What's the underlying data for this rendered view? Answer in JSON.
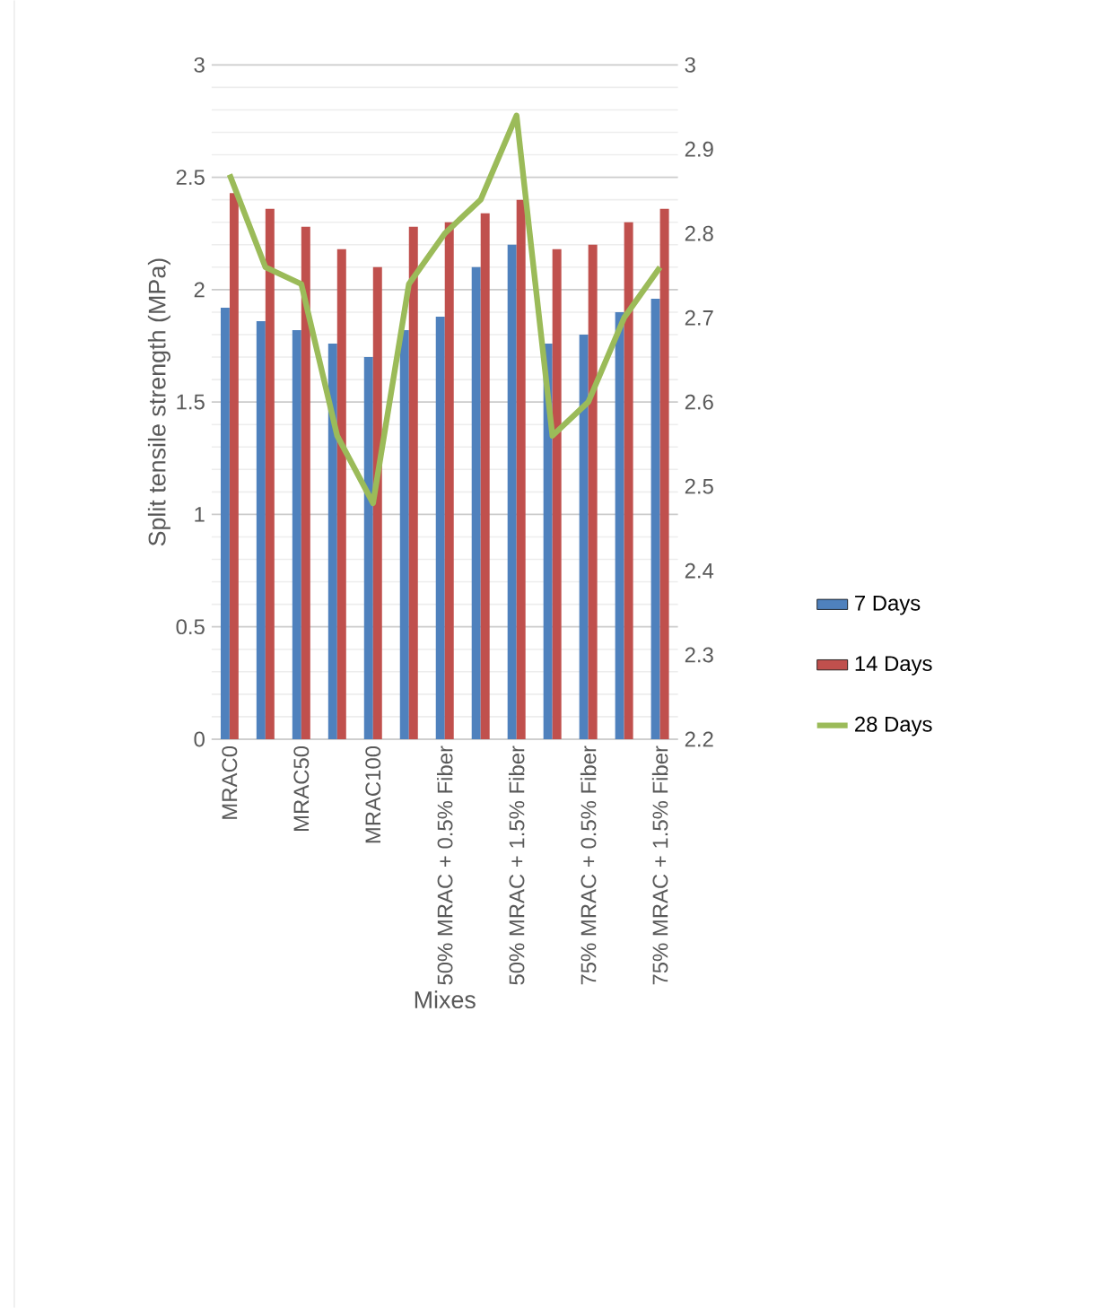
{
  "chart_data": {
    "type": "bar",
    "xlabel": "Mixes",
    "ylabel": "Split tensile strength (MPa)",
    "categories": [
      "MRAC0",
      null,
      "MRAC50",
      null,
      "MRAC100",
      null,
      "50% MRAC + 0.5% Fiber",
      null,
      "50% MRAC + 1.5% Fiber",
      null,
      "75% MRAC + 0.5% Fiber",
      null,
      "75% MRAC + 1.5% Fiber"
    ],
    "series": [
      {
        "name": "7 Days",
        "color": "#4f81bd",
        "values": [
          1.92,
          1.86,
          1.82,
          1.76,
          1.7,
          1.82,
          1.88,
          2.1,
          2.2,
          1.76,
          1.8,
          1.9,
          1.96
        ]
      },
      {
        "name": "14 Days",
        "color": "#c0504d",
        "values": [
          2.43,
          2.36,
          2.28,
          2.18,
          2.1,
          2.28,
          2.3,
          2.34,
          2.4,
          2.18,
          2.2,
          2.3,
          2.36
        ]
      },
      {
        "name": "28 Days",
        "type": "line",
        "axis": "y2",
        "color": "#9bbb59",
        "values": [
          2.87,
          2.76,
          2.74,
          2.56,
          2.48,
          2.74,
          2.8,
          2.84,
          2.94,
          2.56,
          2.6,
          2.7,
          2.76
        ]
      }
    ],
    "ylim": [
      0,
      3
    ],
    "yticks": [
      0,
      0.5,
      1,
      1.5,
      2,
      2.5,
      3
    ],
    "y2lim": [
      2.2,
      3
    ],
    "y2ticks": [
      2.2,
      2.3,
      2.4,
      2.5,
      2.6,
      2.7,
      2.8,
      2.9,
      3
    ],
    "grid": true,
    "legend": "right"
  }
}
